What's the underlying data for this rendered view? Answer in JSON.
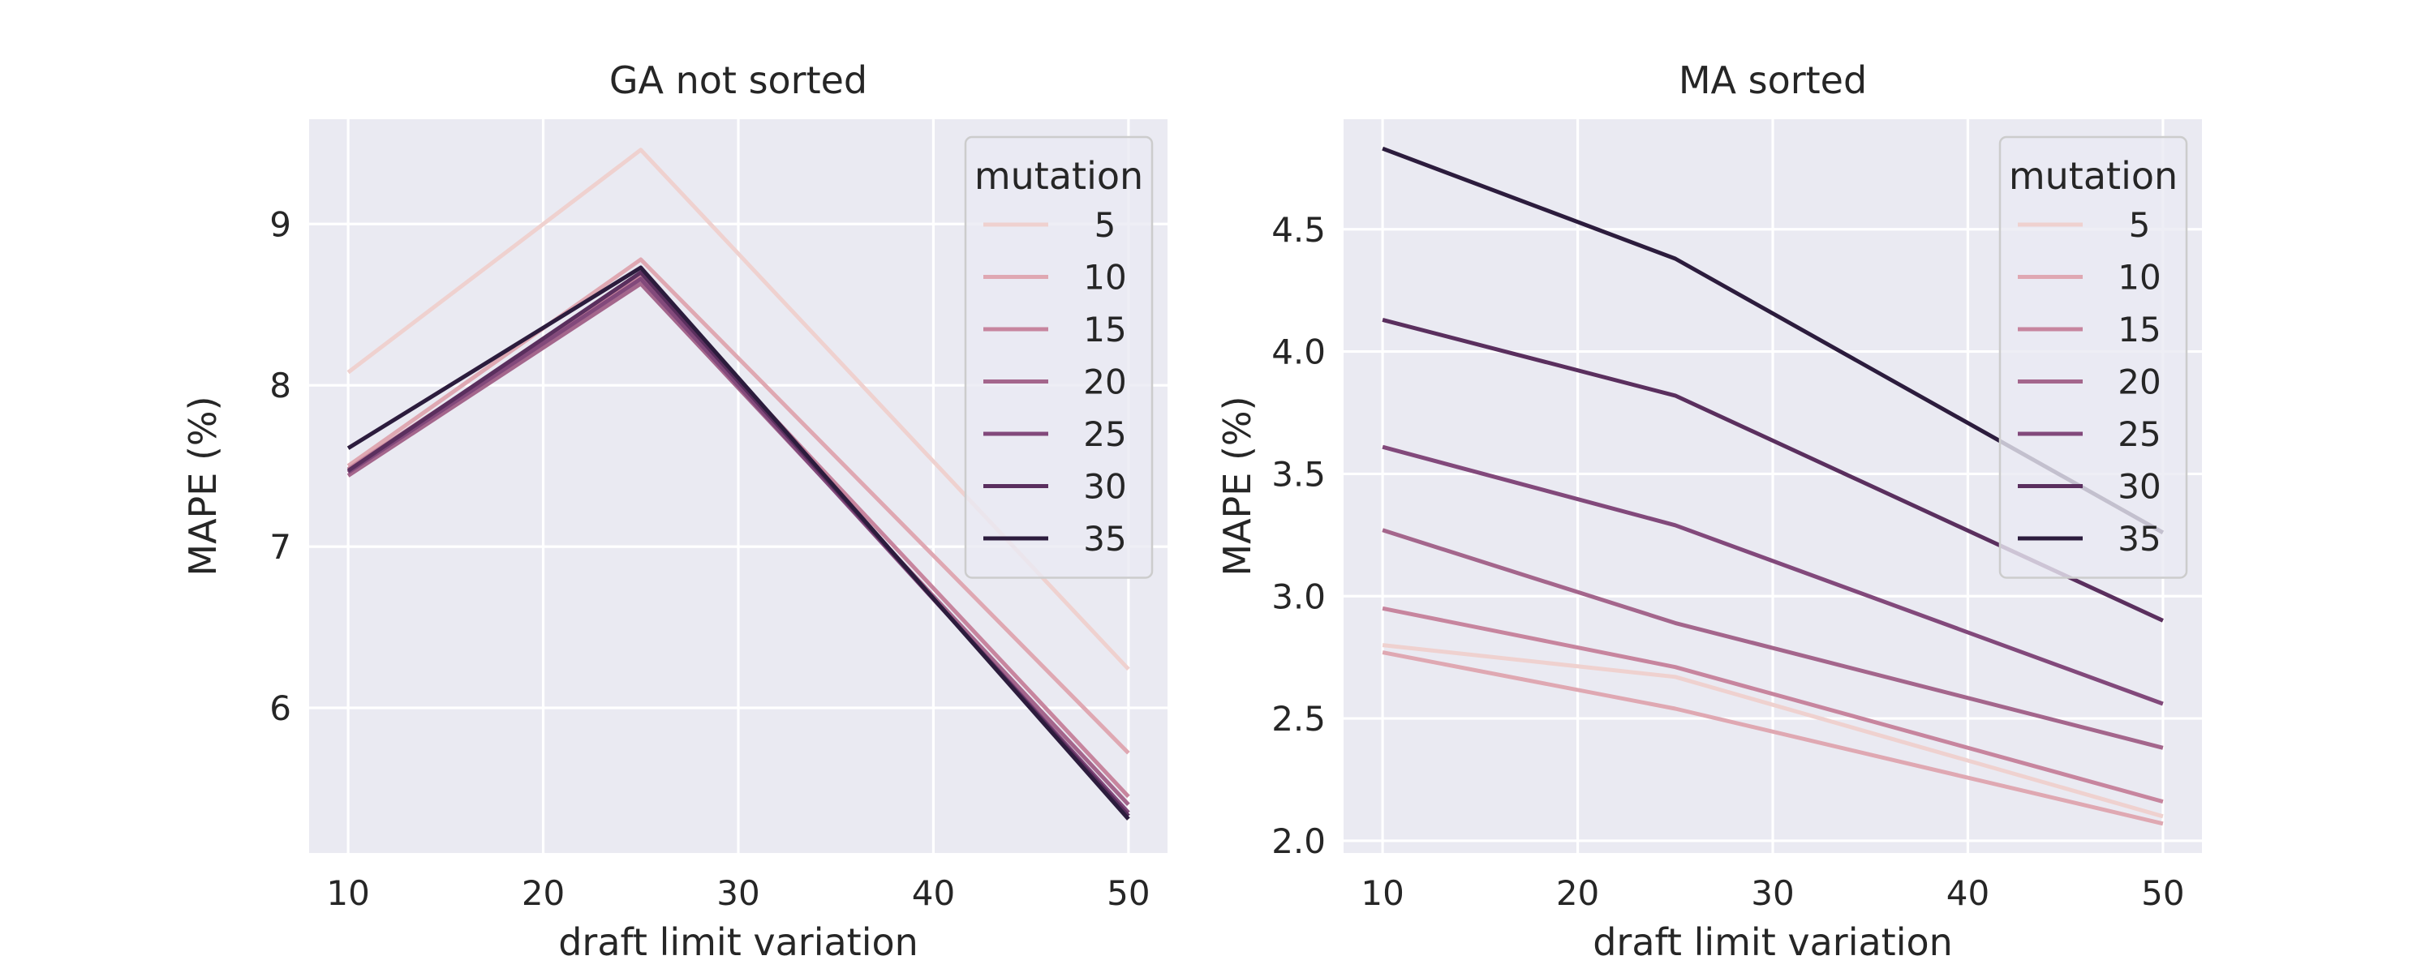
{
  "chart_data": [
    {
      "type": "line",
      "title": "GA not sorted",
      "xlabel": "draft limit variation",
      "ylabel": "MAPE (%)",
      "xlim": [
        8,
        52
      ],
      "ylim": [
        5.1,
        9.65
      ],
      "xticks": [
        10,
        20,
        30,
        40,
        50
      ],
      "yticks": [
        6,
        7,
        8,
        9
      ],
      "x": [
        10,
        25,
        50
      ],
      "grid": true,
      "legend_title": "mutation",
      "legend_position": "upper right",
      "series": [
        {
          "name": "5",
          "color": "#efd1cf",
          "values": [
            8.08,
            9.46,
            6.24
          ]
        },
        {
          "name": "10",
          "color": "#dfa8b2",
          "values": [
            7.5,
            8.78,
            5.72
          ]
        },
        {
          "name": "15",
          "color": "#c7859e",
          "values": [
            7.48,
            8.68,
            5.45
          ]
        },
        {
          "name": "20",
          "color": "#a4668c",
          "values": [
            7.44,
            8.63,
            5.4
          ]
        },
        {
          "name": "25",
          "color": "#82497b",
          "values": [
            7.46,
            8.66,
            5.35
          ]
        },
        {
          "name": "30",
          "color": "#5a2f5e",
          "values": [
            7.47,
            8.7,
            5.33
          ]
        },
        {
          "name": "35",
          "color": "#2c1c3d",
          "values": [
            7.61,
            8.73,
            5.31
          ]
        }
      ]
    },
    {
      "type": "line",
      "title": "MA sorted",
      "xlabel": "draft limit variation",
      "ylabel": "MAPE (%)",
      "xlim": [
        8,
        52
      ],
      "ylim": [
        1.95,
        4.95
      ],
      "xticks": [
        10,
        20,
        30,
        40,
        50
      ],
      "yticks": [
        2.0,
        2.5,
        3.0,
        3.5,
        4.0,
        4.5
      ],
      "ytick_labels": [
        "2.0",
        "2.5",
        "3.0",
        "3.5",
        "4.0",
        "4.5"
      ],
      "x": [
        10,
        25,
        50
      ],
      "grid": true,
      "legend_title": "mutation",
      "legend_position": "upper right",
      "series": [
        {
          "name": "5",
          "color": "#efd1cf",
          "values": [
            2.8,
            2.67,
            2.1
          ]
        },
        {
          "name": "10",
          "color": "#dfa8b2",
          "values": [
            2.77,
            2.54,
            2.07
          ]
        },
        {
          "name": "15",
          "color": "#c7859e",
          "values": [
            2.95,
            2.71,
            2.16
          ]
        },
        {
          "name": "20",
          "color": "#a4668c",
          "values": [
            3.27,
            2.89,
            2.38
          ]
        },
        {
          "name": "25",
          "color": "#82497b",
          "values": [
            3.61,
            3.29,
            2.56
          ]
        },
        {
          "name": "30",
          "color": "#5a2f5e",
          "values": [
            4.13,
            3.82,
            2.9
          ]
        },
        {
          "name": "35",
          "color": "#2c1c3d",
          "values": [
            4.83,
            4.38,
            3.26
          ]
        }
      ]
    }
  ]
}
